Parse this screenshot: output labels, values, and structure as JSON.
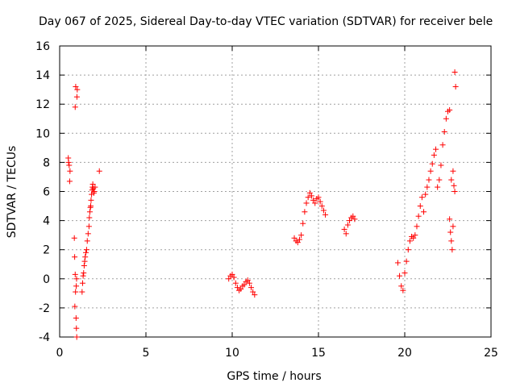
{
  "chart_data": {
    "type": "scatter",
    "title": "Day 067 of 2025, Sidereal Day-to-day VTEC variation (SDTVAR) for receiver bele",
    "xlabel": "GPS time / hours",
    "ylabel": "SDTVAR / TECUs",
    "xlim": [
      0,
      25
    ],
    "ylim": [
      -4,
      16
    ],
    "x_ticks": [
      0,
      5,
      10,
      15,
      20,
      25
    ],
    "y_ticks": [
      -4,
      -2,
      0,
      2,
      4,
      6,
      8,
      10,
      12,
      14,
      16
    ],
    "x_tick_labels": [
      "0",
      "5",
      "10",
      "15",
      "20",
      "25"
    ],
    "y_tick_labels": [
      "-4",
      "-2",
      "0",
      "2",
      "4",
      "6",
      "8",
      "10",
      "12",
      "14",
      "16"
    ],
    "grid": true,
    "marker": "+",
    "series": [
      {
        "name": "SDTVAR",
        "color": "#ff0000",
        "x": [
          0.5,
          0.55,
          0.6,
          0.58,
          0.52,
          0.85,
          0.87,
          0.9,
          0.92,
          0.88,
          0.95,
          0.97,
          0.99,
          1.0,
          1.02,
          0.93,
          0.9,
          0.96,
          0.98,
          1.3,
          1.33,
          1.36,
          1.39,
          1.42,
          1.45,
          1.48,
          1.52,
          1.56,
          1.6,
          1.65,
          1.7,
          1.72,
          1.75,
          1.78,
          1.8,
          1.82,
          1.85,
          1.88,
          1.9,
          1.92,
          1.95,
          1.98,
          2.0,
          2.05,
          2.3,
          9.8,
          9.9,
          10.0,
          10.1,
          10.2,
          10.3,
          10.4,
          10.5,
          10.6,
          10.7,
          10.8,
          10.9,
          11.0,
          11.1,
          11.2,
          11.3,
          13.6,
          13.7,
          13.8,
          13.9,
          14.0,
          14.1,
          14.2,
          14.3,
          14.4,
          14.5,
          14.6,
          14.7,
          14.8,
          14.9,
          15.0,
          15.1,
          15.2,
          15.3,
          15.4,
          16.5,
          16.6,
          16.7,
          16.8,
          16.9,
          17.0,
          17.1,
          19.6,
          19.7,
          19.8,
          19.9,
          20.0,
          20.1,
          20.2,
          20.3,
          20.4,
          20.5,
          20.6,
          20.7,
          20.8,
          20.9,
          21.0,
          21.1,
          21.2,
          21.3,
          21.4,
          21.5,
          21.6,
          21.7,
          21.8,
          21.9,
          22.0,
          22.1,
          22.2,
          22.3,
          22.4,
          22.5,
          22.6,
          22.7,
          22.8,
          22.85,
          22.9,
          22.6,
          22.65,
          22.7,
          22.75,
          22.8,
          22.9,
          22.95
        ],
        "y": [
          8.3,
          7.8,
          7.4,
          6.7,
          8.0,
          2.8,
          1.5,
          0.3,
          -0.9,
          -1.9,
          -2.7,
          -3.4,
          -4.0,
          12.5,
          13.0,
          13.2,
          11.8,
          -0.5,
          0.0,
          -0.9,
          -0.3,
          0.2,
          0.4,
          0.9,
          1.2,
          1.5,
          1.8,
          2.0,
          2.6,
          3.1,
          3.6,
          4.2,
          4.6,
          4.9,
          5.0,
          5.4,
          5.8,
          6.1,
          6.3,
          6.5,
          6.2,
          5.9,
          6.0,
          6.3,
          7.4,
          0.0,
          0.2,
          0.3,
          0.1,
          -0.3,
          -0.6,
          -0.8,
          -0.7,
          -0.5,
          -0.4,
          -0.2,
          -0.1,
          -0.3,
          -0.6,
          -0.9,
          -1.1,
          2.8,
          2.6,
          2.5,
          2.7,
          3.0,
          3.8,
          4.6,
          5.2,
          5.6,
          5.9,
          5.7,
          5.4,
          5.2,
          5.5,
          5.6,
          5.3,
          5.0,
          4.7,
          4.4,
          3.4,
          3.1,
          3.7,
          4.0,
          4.2,
          4.3,
          4.1,
          1.1,
          0.2,
          -0.5,
          -0.8,
          0.4,
          1.2,
          2.0,
          2.6,
          2.9,
          2.8,
          3.0,
          3.6,
          4.3,
          5.0,
          5.6,
          4.6,
          5.8,
          6.3,
          6.8,
          7.4,
          7.9,
          8.5,
          8.9,
          6.3,
          6.8,
          7.8,
          9.2,
          10.1,
          11.0,
          11.5,
          11.6,
          6.8,
          7.4,
          6.4,
          6.0,
          4.1,
          3.2,
          2.6,
          2.0,
          3.6,
          14.2,
          13.2
        ]
      }
    ]
  }
}
